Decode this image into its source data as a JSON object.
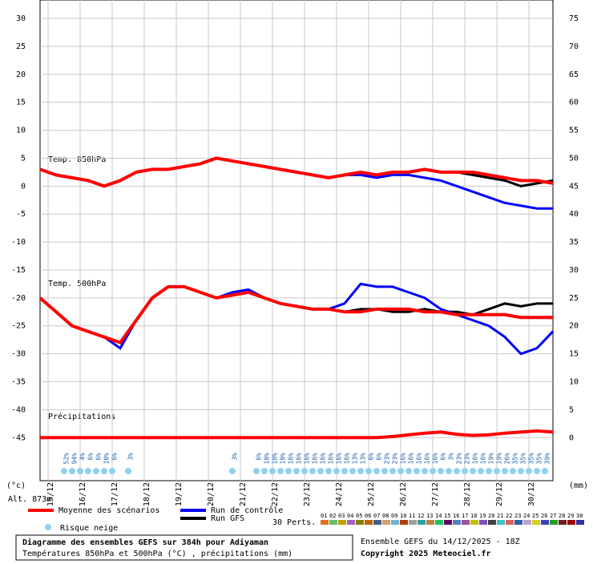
{
  "chart_data": {
    "type": "ensemble-line",
    "x": [
      0,
      12,
      24,
      36,
      48,
      60,
      72,
      84,
      96,
      108,
      120,
      132,
      144,
      156,
      168,
      180,
      192,
      204,
      216,
      228,
      240,
      252,
      264,
      276,
      288,
      300,
      312,
      324,
      336,
      348,
      360,
      372,
      384
    ],
    "xlim": [
      0,
      384
    ],
    "xticks": [
      {
        "value": 6,
        "label": "15/12"
      },
      {
        "value": 30,
        "label": "16/12"
      },
      {
        "value": 54,
        "label": "17/12"
      },
      {
        "value": 78,
        "label": "18/12"
      },
      {
        "value": 102,
        "label": "19/12"
      },
      {
        "value": 126,
        "label": "20/12"
      },
      {
        "value": 150,
        "label": "21/12"
      },
      {
        "value": 174,
        "label": "22/12"
      },
      {
        "value": 198,
        "label": "23/12"
      },
      {
        "value": 222,
        "label": "24/12"
      },
      {
        "value": 246,
        "label": "25/12"
      },
      {
        "value": 270,
        "label": "26/12"
      },
      {
        "value": 294,
        "label": "27/12"
      },
      {
        "value": 318,
        "label": "28/12"
      },
      {
        "value": 342,
        "label": "29/12"
      },
      {
        "value": 366,
        "label": "30/12"
      }
    ],
    "ylim": [
      -52.7,
      33.3
    ],
    "yticks": [
      -45,
      -40,
      -35,
      -30,
      -25,
      -20,
      -15,
      -10,
      -5,
      0,
      5,
      10,
      15,
      20,
      25,
      30
    ],
    "y2lim": [
      -7.7,
      78.3
    ],
    "y2ticks": [
      0,
      5,
      10,
      15,
      20,
      25,
      30,
      35,
      40,
      45,
      50,
      55,
      60,
      65,
      70,
      75
    ],
    "y_unit": "(°c)",
    "y2_unit": "(mm)",
    "altitude": "Alt. 873m",
    "annotations": [
      "Temp. 850hPa",
      "Temp. 500hPa",
      "Précipitations"
    ],
    "series": [
      {
        "name": "Moyenne des scénarios",
        "color": "#ff0000",
        "t850": [
          3,
          2,
          1.5,
          1,
          0,
          1,
          2.5,
          3,
          3,
          3.5,
          4,
          5,
          4.5,
          4,
          3.5,
          3,
          2.5,
          2,
          1.5,
          2,
          2.5,
          2,
          2.5,
          2.5,
          3,
          2.5,
          2.5,
          2.5,
          2,
          1.5,
          1,
          1,
          0.5
        ],
        "t500": [
          -20,
          -22.5,
          -25,
          -26,
          -27,
          -28,
          -24,
          -20,
          -18,
          -18,
          -19,
          -20,
          -19.5,
          -19,
          -20,
          -21,
          -21.5,
          -22,
          -22,
          -22.5,
          -22.5,
          -22,
          -22,
          -22,
          -22.5,
          -22.5,
          -23,
          -23,
          -23,
          -23,
          -23.5,
          -23.5,
          -23.5
        ],
        "precip": [
          0,
          0,
          0,
          0,
          0,
          0,
          0,
          0,
          0,
          0,
          0,
          0,
          0,
          0,
          0,
          0,
          0,
          0,
          0,
          0,
          0,
          0,
          0.2,
          0.5,
          0.8,
          1,
          0.6,
          0.4,
          0.5,
          0.8,
          1,
          1.2,
          1
        ]
      },
      {
        "name": "Run de contrôle",
        "color": "#0000ff",
        "t850": [
          3,
          2,
          1.5,
          1,
          0,
          1,
          2.5,
          3,
          3,
          3.5,
          4,
          5,
          4.5,
          4,
          3.5,
          3,
          2.5,
          2,
          1.5,
          2,
          2,
          1.5,
          2,
          2,
          1.5,
          1,
          0,
          -1,
          -2,
          -3,
          -3.5,
          -4,
          -4
        ],
        "t500": [
          -20,
          -22.5,
          -25,
          -26,
          -27,
          -29,
          -24,
          -20,
          -18,
          -18,
          -19,
          -20,
          -19,
          -18.5,
          -20,
          -21,
          -21.5,
          -22,
          -22,
          -21,
          -17.5,
          -18,
          -18,
          -19,
          -20,
          -22,
          -23,
          -24,
          -25,
          -27,
          -30,
          -29,
          -26
        ]
      },
      {
        "name": "Run GFS",
        "color": "#000000",
        "t850": [
          3,
          2,
          1.5,
          1,
          0,
          1,
          2.5,
          3,
          3,
          3.5,
          4,
          5,
          4.5,
          4,
          3.5,
          3,
          2.5,
          2,
          1.5,
          2,
          2.5,
          2,
          2.5,
          2.5,
          3,
          2.5,
          2.5,
          2,
          1.5,
          1,
          0,
          0.5,
          1
        ],
        "t500": [
          -20,
          -22.5,
          -25,
          -26,
          -27,
          -28,
          -24,
          -20,
          -18,
          -18,
          -19,
          -20,
          -19.5,
          -19,
          -20,
          -21,
          -21.5,
          -22,
          -22,
          -22.5,
          -22,
          -22,
          -22.5,
          -22.5,
          -22,
          -22.5,
          -22.5,
          -23,
          -22,
          -21,
          -21.5,
          -21,
          -21
        ]
      }
    ],
    "snow_risk": {
      "label": "Risque neige",
      "x": [
        18,
        24,
        30,
        36,
        42,
        48,
        54,
        66,
        144,
        162,
        168,
        174,
        180,
        186,
        192,
        198,
        204,
        210,
        216,
        222,
        228,
        234,
        240,
        246,
        252,
        258,
        264,
        270,
        276,
        282,
        288,
        294,
        300,
        306,
        312,
        318,
        324,
        330,
        336,
        342,
        348,
        354,
        360,
        366,
        372,
        378
      ],
      "values": [
        52,
        94,
        4,
        6,
        6,
        10,
        6,
        3,
        3,
        6,
        10,
        10,
        10,
        16,
        16,
        16,
        16,
        16,
        16,
        16,
        16,
        13,
        13,
        6,
        6,
        23,
        23,
        16,
        16,
        16,
        16,
        16,
        6,
        3,
        23,
        23,
        16,
        16,
        19,
        19,
        26,
        35,
        35,
        35,
        35,
        39
      ],
      "value_labels": [
        "52%",
        "94%",
        "4%",
        "6%",
        "6%",
        "10%",
        "6%",
        "3%",
        "3%",
        "6%",
        "10%",
        "10%",
        "10%",
        "16%",
        "16%",
        "16%",
        "16%",
        "16%",
        "16%",
        "16%",
        "16%",
        "13%",
        "13%",
        "6%",
        "6%",
        "23%",
        "23%",
        "16%",
        "16%",
        "16%",
        "16%",
        "16%",
        "6%",
        "3%",
        "23%",
        "23%",
        "16%",
        "16%",
        "19%",
        "19%",
        "26%",
        "35%",
        "35%",
        "35%",
        "35%",
        "39%"
      ]
    },
    "perturbations": {
      "label": "30 Perts.",
      "ids": [
        "01",
        "02",
        "03",
        "04",
        "05",
        "06",
        "07",
        "08",
        "09",
        "10",
        "11",
        "12",
        "13",
        "14",
        "15",
        "16",
        "17",
        "18",
        "19",
        "20",
        "21",
        "22",
        "23",
        "24",
        "25",
        "26",
        "27",
        "28",
        "29",
        "30"
      ],
      "colors": [
        "#e07020",
        "#60c060",
        "#c0a000",
        "#a060c0",
        "#808000",
        "#c06000",
        "#406080",
        "#d0a070",
        "#70b0d0",
        "#b04000",
        "#a0a0a0",
        "#30a0a0",
        "#c08040",
        "#20c060",
        "#600060",
        "#5080c0",
        "#a050a0",
        "#c0c000",
        "#8050c0",
        "#404040",
        "#40c0c0",
        "#e06060",
        "#3060a0",
        "#c0a0d0",
        "#d0d020",
        "#4040c0",
        "#20a020",
        "#702020",
        "#a00000",
        "#3030a0"
      ]
    },
    "footer": {
      "title": "Diagramme des ensembles GEFS sur 384h pour Adiyaman",
      "subtitle": "Températures 850hPa et 500hPa (°C) , précipitations (mm)",
      "run": "Ensemble GEFS du 14/12/2025 - 18Z",
      "copyright": "Copyright 2025 Meteociel.fr"
    }
  }
}
